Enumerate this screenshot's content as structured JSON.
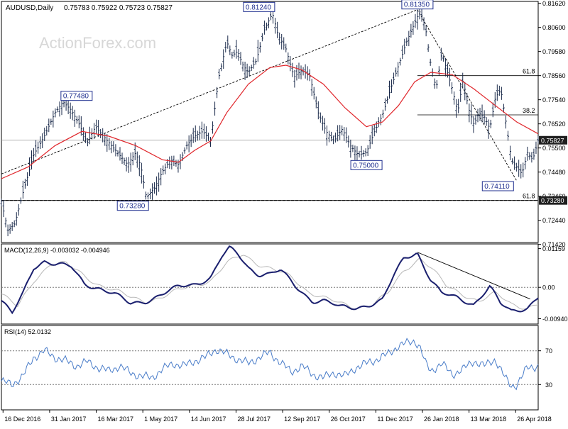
{
  "header": {
    "symbol": "AUDUSD,Daily",
    "ohlc": "0.75783 0.75922 0.75723 0.75827"
  },
  "watermark": "ActionForex.com",
  "colors": {
    "bar": "#1a2a4a",
    "ma": "#e0262b",
    "macd_line": "#1a1f6e",
    "macd_signal": "#b8b8b8",
    "rsi": "#4a7dc9",
    "grid": "#7a7a7a",
    "label_border": "#1f2f8f",
    "label_text": "#1f2f8f",
    "price_box_bg": "#1f1f1f"
  },
  "chart_data": [
    {
      "type": "ohlc",
      "name": "price",
      "ylim": [
        0.715,
        0.817
      ],
      "y_ticks": [
        "0.81620",
        "0.80600",
        "0.79580",
        "0.78560",
        "0.77540",
        "0.76520",
        "0.75500",
        "0.74480",
        "0.73460",
        "0.72440",
        "0.71420"
      ],
      "current_price_label": "0.75827",
      "current_price": 0.75827,
      "x_labels": [
        "16 Dec 2016",
        "31 Jan 2017",
        "16 Mar 2017",
        "1 May 2017",
        "14 Jun 2017",
        "28 Jul 2017",
        "12 Sep 2017",
        "26 Oct 2017",
        "11 Dec 2017",
        "26 Jan 2018",
        "13 Mar 2018",
        "26 Apr 2018"
      ],
      "close_path": [
        [
          0.0,
          0.7325
        ],
        [
          0.012,
          0.72
        ],
        [
          0.025,
          0.723
        ],
        [
          0.04,
          0.736
        ],
        [
          0.06,
          0.752
        ],
        [
          0.08,
          0.76
        ],
        [
          0.1,
          0.77
        ],
        [
          0.115,
          0.7745
        ],
        [
          0.13,
          0.771
        ],
        [
          0.145,
          0.765
        ],
        [
          0.16,
          0.757
        ],
        [
          0.175,
          0.764
        ],
        [
          0.19,
          0.76
        ],
        [
          0.205,
          0.756
        ],
        [
          0.22,
          0.752
        ],
        [
          0.235,
          0.748
        ],
        [
          0.25,
          0.753
        ],
        [
          0.26,
          0.747
        ],
        [
          0.27,
          0.734
        ],
        [
          0.285,
          0.738
        ],
        [
          0.3,
          0.745
        ],
        [
          0.315,
          0.75
        ],
        [
          0.33,
          0.748
        ],
        [
          0.345,
          0.756
        ],
        [
          0.36,
          0.76
        ],
        [
          0.375,
          0.762
        ],
        [
          0.39,
          0.758
        ],
        [
          0.405,
          0.785
        ],
        [
          0.42,
          0.8
        ],
        [
          0.43,
          0.794
        ],
        [
          0.44,
          0.796
        ],
        [
          0.45,
          0.79
        ],
        [
          0.46,
          0.787
        ],
        [
          0.475,
          0.792
        ],
        [
          0.49,
          0.805
        ],
        [
          0.505,
          0.812
        ],
        [
          0.515,
          0.803
        ],
        [
          0.53,
          0.797
        ],
        [
          0.545,
          0.785
        ],
        [
          0.56,
          0.788
        ],
        [
          0.575,
          0.785
        ],
        [
          0.59,
          0.77
        ],
        [
          0.605,
          0.762
        ],
        [
          0.62,
          0.758
        ],
        [
          0.635,
          0.763
        ],
        [
          0.65,
          0.756
        ],
        [
          0.665,
          0.752
        ],
        [
          0.68,
          0.753
        ],
        [
          0.695,
          0.762
        ],
        [
          0.71,
          0.769
        ],
        [
          0.725,
          0.78
        ],
        [
          0.74,
          0.79
        ],
        [
          0.755,
          0.8
        ],
        [
          0.77,
          0.808
        ],
        [
          0.78,
          0.813
        ],
        [
          0.79,
          0.806
        ],
        [
          0.8,
          0.79
        ],
        [
          0.81,
          0.78
        ],
        [
          0.82,
          0.795
        ],
        [
          0.83,
          0.788
        ],
        [
          0.84,
          0.78
        ],
        [
          0.85,
          0.77
        ],
        [
          0.86,
          0.784
        ],
        [
          0.87,
          0.772
        ],
        [
          0.88,
          0.765
        ],
        [
          0.89,
          0.77
        ],
        [
          0.9,
          0.768
        ],
        [
          0.91,
          0.763
        ],
        [
          0.92,
          0.776
        ],
        [
          0.93,
          0.78
        ],
        [
          0.94,
          0.766
        ],
        [
          0.95,
          0.75
        ],
        [
          0.96,
          0.747
        ],
        [
          0.97,
          0.744
        ],
        [
          0.98,
          0.753
        ],
        [
          0.99,
          0.75
        ],
        [
          1.0,
          0.7583
        ]
      ],
      "ma_path": [
        [
          0.0,
          0.742
        ],
        [
          0.05,
          0.747
        ],
        [
          0.1,
          0.756
        ],
        [
          0.15,
          0.762
        ],
        [
          0.2,
          0.76
        ],
        [
          0.25,
          0.756
        ],
        [
          0.3,
          0.75
        ],
        [
          0.33,
          0.749
        ],
        [
          0.36,
          0.754
        ],
        [
          0.39,
          0.758
        ],
        [
          0.42,
          0.77
        ],
        [
          0.46,
          0.782
        ],
        [
          0.5,
          0.789
        ],
        [
          0.53,
          0.79
        ],
        [
          0.56,
          0.788
        ],
        [
          0.6,
          0.782
        ],
        [
          0.64,
          0.772
        ],
        [
          0.68,
          0.764
        ],
        [
          0.71,
          0.766
        ],
        [
          0.74,
          0.773
        ],
        [
          0.77,
          0.783
        ],
        [
          0.8,
          0.787
        ],
        [
          0.84,
          0.786
        ],
        [
          0.88,
          0.78
        ],
        [
          0.92,
          0.773
        ],
        [
          0.96,
          0.766
        ],
        [
          1.0,
          0.761
        ]
      ],
      "annotations": [
        {
          "text": "0.81350",
          "x": 0.775,
          "y": 0.8135
        },
        {
          "text": "0.81240",
          "x": 0.48,
          "y": 0.8124
        },
        {
          "text": "0.77480",
          "x": 0.14,
          "y": 0.7748
        },
        {
          "text": "0.75000",
          "x": 0.68,
          "y": 0.75
        },
        {
          "text": "0.74110",
          "x": 0.925,
          "y": 0.7411
        },
        {
          "text": "0.73280",
          "x": 0.245,
          "y": 0.7328
        }
      ],
      "fib_levels": [
        {
          "label": "61.8",
          "value": 0.7856,
          "x_start": 0.775
        },
        {
          "label": "38.2",
          "value": 0.769,
          "x_start": 0.775
        },
        {
          "label": "61.8",
          "value": 0.7328,
          "x_start": 0.0
        }
      ],
      "trendlines": [
        {
          "from": [
            0.0,
            0.744
          ],
          "to": [
            0.775,
            0.8135
          ]
        },
        {
          "from": [
            0.775,
            0.8135
          ],
          "to": [
            0.96,
            0.7411
          ]
        }
      ],
      "current_price_line": 0.75827,
      "support_line": 0.7328
    },
    {
      "type": "line",
      "name": "macd",
      "label": "MACD(12,26,9) -0.003032 -0.004946",
      "ylim": [
        -0.011,
        0.013
      ],
      "y_ticks": [
        "0.01159",
        "0.00",
        "-0.009408"
      ],
      "zero_line": 0,
      "series": [
        {
          "role": "macd",
          "values": [
            [
              0.0,
              -0.004
            ],
            [
              0.02,
              -0.008
            ],
            [
              0.04,
              -0.002
            ],
            [
              0.06,
              0.006
            ],
            [
              0.08,
              0.008
            ],
            [
              0.1,
              0.007
            ],
            [
              0.13,
              0.006
            ],
            [
              0.155,
              0.001
            ],
            [
              0.18,
              0.0
            ],
            [
              0.21,
              -0.002
            ],
            [
              0.24,
              -0.005
            ],
            [
              0.27,
              -0.004
            ],
            [
              0.3,
              -0.002
            ],
            [
              0.33,
              0.0
            ],
            [
              0.36,
              0.001
            ],
            [
              0.39,
              0.003
            ],
            [
              0.41,
              0.009
            ],
            [
              0.425,
              0.0115
            ],
            [
              0.44,
              0.01
            ],
            [
              0.46,
              0.006
            ],
            [
              0.48,
              0.004
            ],
            [
              0.5,
              0.004
            ],
            [
              0.52,
              0.005
            ],
            [
              0.55,
              0.0
            ],
            [
              0.58,
              -0.004
            ],
            [
              0.6,
              -0.004
            ],
            [
              0.63,
              -0.006
            ],
            [
              0.66,
              -0.006
            ],
            [
              0.69,
              -0.005
            ],
            [
              0.71,
              -0.004
            ],
            [
              0.73,
              0.003
            ],
            [
              0.75,
              0.009
            ],
            [
              0.775,
              0.0105
            ],
            [
              0.8,
              0.002
            ],
            [
              0.82,
              -0.002
            ],
            [
              0.85,
              -0.003
            ],
            [
              0.88,
              -0.005
            ],
            [
              0.91,
              0.0
            ],
            [
              0.93,
              -0.005
            ],
            [
              0.95,
              -0.007
            ],
            [
              0.98,
              -0.006
            ],
            [
              1.0,
              -0.003
            ]
          ]
        },
        {
          "role": "signal",
          "values": [
            [
              0.0,
              -0.002
            ],
            [
              0.03,
              -0.006
            ],
            [
              0.06,
              0.002
            ],
            [
              0.09,
              0.007
            ],
            [
              0.12,
              0.007
            ],
            [
              0.15,
              0.004
            ],
            [
              0.18,
              0.001
            ],
            [
              0.21,
              -0.001
            ],
            [
              0.24,
              -0.003
            ],
            [
              0.27,
              -0.004
            ],
            [
              0.3,
              -0.003
            ],
            [
              0.33,
              -0.001
            ],
            [
              0.36,
              0.001
            ],
            [
              0.39,
              0.002
            ],
            [
              0.42,
              0.007
            ],
            [
              0.45,
              0.01
            ],
            [
              0.48,
              0.007
            ],
            [
              0.51,
              0.005
            ],
            [
              0.54,
              0.003
            ],
            [
              0.57,
              -0.001
            ],
            [
              0.6,
              -0.003
            ],
            [
              0.63,
              -0.005
            ],
            [
              0.66,
              -0.006
            ],
            [
              0.69,
              -0.005
            ],
            [
              0.72,
              -0.002
            ],
            [
              0.75,
              0.005
            ],
            [
              0.78,
              0.009
            ],
            [
              0.8,
              0.006
            ],
            [
              0.83,
              0.0
            ],
            [
              0.86,
              -0.002
            ],
            [
              0.89,
              -0.004
            ],
            [
              0.92,
              -0.002
            ],
            [
              0.95,
              -0.005
            ],
            [
              0.98,
              -0.006
            ],
            [
              1.0,
              -0.005
            ]
          ]
        }
      ],
      "trendline": {
        "from": [
          0.775,
          0.0105
        ],
        "to": [
          0.985,
          -0.0035
        ]
      }
    },
    {
      "type": "line",
      "name": "rsi",
      "label": "RSI(14) 52.0132",
      "ylim": [
        0,
        100
      ],
      "y_ticks": [
        "70",
        "30"
      ],
      "levels": [
        70,
        30
      ],
      "series": [
        {
          "role": "rsi",
          "values": [
            [
              0.0,
              34
            ],
            [
              0.02,
              30
            ],
            [
              0.04,
              40
            ],
            [
              0.06,
              62
            ],
            [
              0.08,
              70
            ],
            [
              0.1,
              62
            ],
            [
              0.12,
              58
            ],
            [
              0.14,
              52
            ],
            [
              0.16,
              57
            ],
            [
              0.18,
              50
            ],
            [
              0.2,
              46
            ],
            [
              0.22,
              52
            ],
            [
              0.24,
              44
            ],
            [
              0.26,
              40
            ],
            [
              0.28,
              38
            ],
            [
              0.3,
              48
            ],
            [
              0.32,
              55
            ],
            [
              0.34,
              52
            ],
            [
              0.36,
              58
            ],
            [
              0.38,
              62
            ],
            [
              0.4,
              72
            ],
            [
              0.42,
              66
            ],
            [
              0.44,
              60
            ],
            [
              0.46,
              55
            ],
            [
              0.48,
              62
            ],
            [
              0.5,
              68
            ],
            [
              0.52,
              56
            ],
            [
              0.54,
              45
            ],
            [
              0.56,
              52
            ],
            [
              0.58,
              42
            ],
            [
              0.6,
              38
            ],
            [
              0.62,
              44
            ],
            [
              0.64,
              40
            ],
            [
              0.66,
              50
            ],
            [
              0.68,
              55
            ],
            [
              0.7,
              60
            ],
            [
              0.72,
              66
            ],
            [
              0.74,
              76
            ],
            [
              0.76,
              80
            ],
            [
              0.77,
              82
            ],
            [
              0.78,
              74
            ],
            [
              0.79,
              55
            ],
            [
              0.8,
              46
            ],
            [
              0.82,
              55
            ],
            [
              0.84,
              42
            ],
            [
              0.86,
              48
            ],
            [
              0.88,
              58
            ],
            [
              0.9,
              52
            ],
            [
              0.92,
              60
            ],
            [
              0.94,
              36
            ],
            [
              0.95,
              28
            ],
            [
              0.96,
              30
            ],
            [
              0.97,
              40
            ],
            [
              0.98,
              50
            ],
            [
              1.0,
              52
            ]
          ]
        }
      ]
    }
  ]
}
